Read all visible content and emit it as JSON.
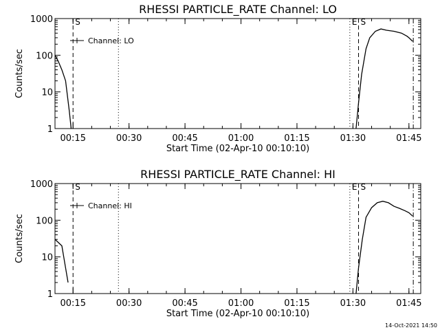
{
  "chart_data": [
    {
      "type": "line",
      "title": "RHESSI PARTICLE_RATE Channel: LO",
      "xlabel": "Start Time (02-Apr-10 00:10:10)",
      "ylabel": "Counts/sec",
      "yscale": "log",
      "ylim": [
        1,
        1000
      ],
      "xlim": [
        "00:10:10",
        "01:48:10"
      ],
      "x_ticks": [
        "00:15",
        "00:30",
        "00:45",
        "01:00",
        "01:15",
        "01:30",
        "01:45"
      ],
      "y_ticks": [
        "1",
        "10",
        "100",
        "1000"
      ],
      "legend": "Channel: LO",
      "markers": [
        {
          "label": "S",
          "time": "00:15:00",
          "style": "dashed"
        },
        {
          "label": "",
          "time": "00:27:10",
          "style": "dotted"
        },
        {
          "label": "E",
          "time": "01:29:10",
          "style": "dotted"
        },
        {
          "label": "S",
          "time": "01:31:30",
          "style": "dashed"
        },
        {
          "label": "",
          "time": "01:46:10",
          "style": "dashdot"
        }
      ],
      "series": [
        {
          "segments": [
            [
              [
                "00:10:10",
                100
              ],
              [
                "00:11:00",
                70
              ],
              [
                "00:12:00",
                40
              ],
              [
                "00:13:00",
                20
              ],
              [
                "00:14:00",
                3
              ],
              [
                "00:14:30",
                1
              ]
            ],
            [
              [
                "01:30:50",
                1
              ],
              [
                "01:31:30",
                5
              ],
              [
                "01:32:20",
                30
              ],
              [
                "01:33:30",
                150
              ],
              [
                "01:34:30",
                300
              ],
              [
                "01:36:00",
                450
              ],
              [
                "01:37:30",
                520
              ],
              [
                "01:39:00",
                480
              ],
              [
                "01:41:00",
                450
              ],
              [
                "01:43:00",
                400
              ],
              [
                "01:44:30",
                330
              ],
              [
                "01:45:00",
                300
              ],
              [
                "01:46:00",
                240
              ]
            ]
          ]
        }
      ]
    },
    {
      "type": "line",
      "title": "RHESSI PARTICLE_RATE Channel: HI",
      "xlabel": "Start Time (02-Apr-10 00:10:10)",
      "ylabel": "Counts/sec",
      "yscale": "log",
      "ylim": [
        1,
        1000
      ],
      "xlim": [
        "00:10:10",
        "01:48:10"
      ],
      "x_ticks": [
        "00:15",
        "00:30",
        "00:45",
        "01:00",
        "01:15",
        "01:30",
        "01:45"
      ],
      "y_ticks": [
        "1",
        "10",
        "100",
        "1000"
      ],
      "legend": "Channel: HI",
      "markers": [
        {
          "label": "S",
          "time": "00:15:00",
          "style": "dashed"
        },
        {
          "label": "",
          "time": "00:27:10",
          "style": "dotted"
        },
        {
          "label": "E",
          "time": "01:29:10",
          "style": "dotted"
        },
        {
          "label": "S",
          "time": "01:31:30",
          "style": "dashed"
        },
        {
          "label": "",
          "time": "01:46:10",
          "style": "dashdot"
        }
      ],
      "series": [
        {
          "segments": [
            [
              [
                "00:10:10",
                30
              ],
              [
                "00:11:00",
                25
              ],
              [
                "00:12:00",
                20
              ],
              [
                "00:12:30",
                10
              ],
              [
                "00:13:00",
                5
              ],
              [
                "00:13:40",
                2
              ]
            ],
            [
              [
                "01:30:50",
                1
              ],
              [
                "01:31:30",
                5
              ],
              [
                "01:32:30",
                30
              ],
              [
                "01:33:30",
                120
              ],
              [
                "01:35:00",
                220
              ],
              [
                "01:36:30",
                300
              ],
              [
                "01:38:00",
                330
              ],
              [
                "01:39:30",
                300
              ],
              [
                "01:41:00",
                240
              ],
              [
                "01:42:30",
                210
              ],
              [
                "01:44:00",
                180
              ],
              [
                "01:45:00",
                160
              ],
              [
                "01:46:00",
                130
              ]
            ]
          ]
        }
      ]
    }
  ],
  "timestamp": "14-Oct-2021 14:50"
}
